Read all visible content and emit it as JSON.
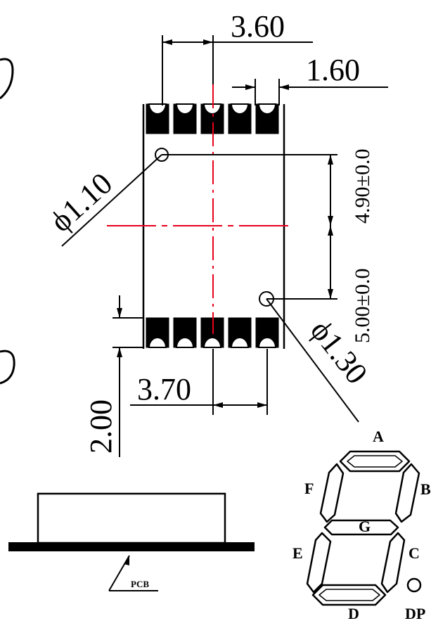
{
  "dimensions": {
    "top_width": "3.60",
    "pin_width": "1.60",
    "hole_top_dia": "ϕ1.10",
    "hole_bottom_dia": "ϕ1.30",
    "upper_spacing": "4.90±0.0",
    "lower_spacing": "5.00±0.0",
    "bottom_width": "3.70",
    "pad_height": "2.00"
  },
  "segment_labels": {
    "a": "A",
    "b": "B",
    "c": "C",
    "d": "D",
    "e": "E",
    "f": "F",
    "g": "G",
    "dp": "DP"
  },
  "side_view": {
    "pcb_label": "PCB"
  },
  "colors": {
    "line": "#000000",
    "centerline": "#e8001c",
    "fill": "#000000"
  }
}
